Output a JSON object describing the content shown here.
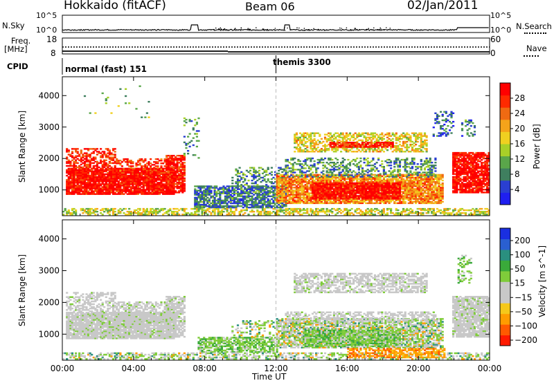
{
  "header": {
    "station": "Hokkaido (fitACF)",
    "beam": "Beam 06",
    "date": "02/Jan/2011"
  },
  "left_labels": {
    "nsky": "N.Sky",
    "freq": "Freq.",
    "freq_unit": "[MHz]",
    "cpid": "CPID"
  },
  "right_labels": {
    "nsearch": "N.Search",
    "nave": "Nave"
  },
  "noise_panel": {
    "left_ticks": [
      "10^5",
      "10^0"
    ],
    "right_ticks": [
      "10^5",
      "10^0"
    ]
  },
  "freq_panel": {
    "left_ticks": [
      "18",
      "8"
    ],
    "right_ticks": [
      "60",
      "0"
    ]
  },
  "cpid_panel": {
    "segments": [
      {
        "label": "normal (fast) 151",
        "start_hour": 0
      },
      {
        "label": "themis 3300",
        "start_hour": 12
      }
    ]
  },
  "colors": {
    "power_scale": [
      "#1f1ff0",
      "#2a3fd1",
      "#3f7f5f",
      "#5aa64a",
      "#a8d028",
      "#f0d020",
      "#f5a31a",
      "#f06a12",
      "#ff2a00",
      "#ff0000"
    ],
    "velocity_scale": [
      "#ff1a00",
      "#ff5a00",
      "#ff9c00",
      "#f5c81a",
      "#c8c8c8",
      "#c8c8c8",
      "#7fcc3a",
      "#3aaa3a",
      "#2a8f7f",
      "#2a5fd1",
      "#1a2fe0"
    ],
    "velocity_neutral": "#c8c8c8"
  },
  "chart_data": [
    {
      "type": "heatmap",
      "title": "",
      "ylabel": "Slant Range [km]",
      "ylim": [
        180,
        4600
      ],
      "yticks": [
        1000,
        2000,
        3000,
        4000
      ],
      "xlim": [
        0,
        24
      ],
      "colorbar_label": "Power [dB]",
      "colorbar_ticks": [
        4,
        8,
        12,
        16,
        20,
        24,
        28
      ],
      "colorbar_range": [
        0,
        32
      ]
    },
    {
      "type": "heatmap",
      "title": "",
      "ylabel": "Slant Range [km]",
      "ylim": [
        180,
        4600
      ],
      "yticks": [
        1000,
        2000,
        3000,
        4000
      ],
      "xlim": [
        0,
        24
      ],
      "xlabel": "Time UT",
      "xticks": [
        "00:00",
        "04:00",
        "08:00",
        "12:00",
        "16:00",
        "20:00",
        "00:00"
      ],
      "colorbar_label": "Velocity [m s^-1]",
      "colorbar_ticks": [
        "200",
        "100",
        "50",
        "15",
        "−15",
        "−50",
        "−100",
        "−200"
      ]
    }
  ]
}
